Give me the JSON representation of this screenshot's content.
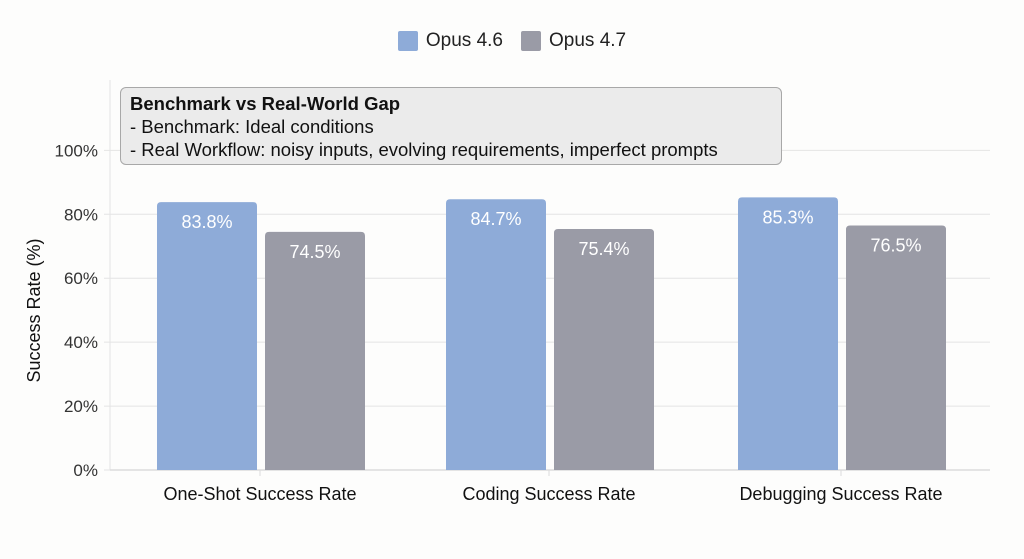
{
  "chart_data": {
    "type": "bar",
    "categories": [
      "One-Shot Success Rate",
      "Coding Success Rate",
      "Debugging Success Rate"
    ],
    "series": [
      {
        "name": "Opus 4.6",
        "values": [
          83.8,
          84.7,
          85.3
        ],
        "labels": [
          "83.8%",
          "84.7%",
          "85.3%"
        ],
        "color": "#8eabd8"
      },
      {
        "name": "Opus 4.7",
        "values": [
          74.5,
          75.4,
          76.5
        ],
        "labels": [
          "74.5%",
          "75.4%",
          "76.5%"
        ],
        "color": "#9a9ba6"
      }
    ],
    "title": "",
    "xlabel": "",
    "ylabel": "Success Rate (%)",
    "ylim": [
      0,
      122
    ],
    "yticks": [
      0,
      20,
      40,
      60,
      80,
      100
    ],
    "ytick_labels": [
      "0%",
      "20%",
      "40%",
      "60%",
      "80%",
      "100%"
    ],
    "grid": true,
    "legend_placement": "top-center",
    "annotation": {
      "title": "Benchmark vs Real-World Gap",
      "lines": [
        "-  Benchmark: Ideal conditions",
        "-  Real Workflow: noisy inputs, evolving requirements, imperfect prompts"
      ]
    }
  }
}
